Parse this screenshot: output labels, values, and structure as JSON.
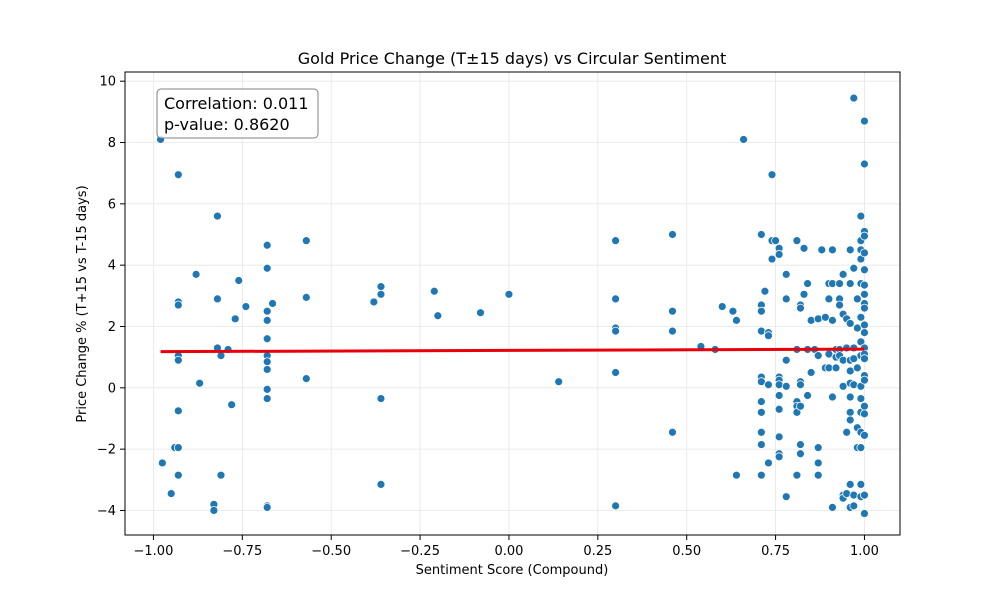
{
  "chart_data": {
    "type": "scatter",
    "title": "Gold Price Change (T±15 days) vs Circular Sentiment",
    "xlabel": "Sentiment Score (Compound)",
    "ylabel": "Price Change % (T+15 vs T-15 days)",
    "xlim": [
      -1.08,
      1.1
    ],
    "ylim": [
      -4.8,
      10.3
    ],
    "xticks": [
      -1.0,
      -0.75,
      -0.5,
      -0.25,
      0.0,
      0.25,
      0.5,
      0.75,
      1.0
    ],
    "xtick_labels": [
      "−1.00",
      "−0.75",
      "−0.50",
      "−0.25",
      "0.00",
      "0.25",
      "0.50",
      "0.75",
      "1.00"
    ],
    "yticks": [
      -4,
      -2,
      0,
      2,
      4,
      6,
      8,
      10
    ],
    "ytick_labels": [
      "−4",
      "−2",
      "0",
      "2",
      "4",
      "6",
      "8",
      "10"
    ],
    "grid": true,
    "point_color": "#1f77b4",
    "trend_color": "#e8000b",
    "annotation": {
      "line1": "Correlation: 0.011",
      "line2": "p-value: 0.8620"
    },
    "trendline": {
      "x": [
        -0.98,
        1.0
      ],
      "y": [
        1.18,
        1.26
      ]
    },
    "points": [
      [
        -0.98,
        8.1
      ],
      [
        -0.975,
        -2.45
      ],
      [
        -0.95,
        -3.45
      ],
      [
        -0.94,
        -1.95
      ],
      [
        -0.93,
        -1.95
      ],
      [
        -0.93,
        6.95
      ],
      [
        -0.93,
        2.8
      ],
      [
        -0.93,
        2.7
      ],
      [
        -0.93,
        1.05
      ],
      [
        -0.93,
        0.9
      ],
      [
        -0.93,
        -0.75
      ],
      [
        -0.93,
        -2.85
      ],
      [
        -0.88,
        3.7
      ],
      [
        -0.87,
        0.15
      ],
      [
        -0.83,
        -3.8
      ],
      [
        -0.83,
        -4.0
      ],
      [
        -0.82,
        5.6
      ],
      [
        -0.82,
        2.9
      ],
      [
        -0.82,
        1.3
      ],
      [
        -0.81,
        1.05
      ],
      [
        -0.81,
        -2.85
      ],
      [
        -0.79,
        1.25
      ],
      [
        -0.78,
        -0.55
      ],
      [
        -0.77,
        2.25
      ],
      [
        -0.76,
        3.5
      ],
      [
        -0.74,
        2.65
      ],
      [
        -0.68,
        4.65
      ],
      [
        -0.68,
        3.9
      ],
      [
        -0.68,
        2.5
      ],
      [
        -0.68,
        2.2
      ],
      [
        -0.68,
        1.6
      ],
      [
        -0.68,
        1.05
      ],
      [
        -0.68,
        0.85
      ],
      [
        -0.68,
        0.6
      ],
      [
        -0.68,
        -0.05
      ],
      [
        -0.68,
        -0.35
      ],
      [
        -0.68,
        -3.85
      ],
      [
        -0.68,
        -3.9
      ],
      [
        -0.665,
        2.75
      ],
      [
        -0.57,
        4.8
      ],
      [
        -0.57,
        2.95
      ],
      [
        -0.57,
        0.3
      ],
      [
        -0.38,
        2.8
      ],
      [
        -0.36,
        3.3
      ],
      [
        -0.36,
        3.05
      ],
      [
        -0.36,
        -0.35
      ],
      [
        -0.36,
        -3.15
      ],
      [
        -0.21,
        3.15
      ],
      [
        -0.2,
        2.35
      ],
      [
        -0.08,
        2.45
      ],
      [
        0.0,
        3.05
      ],
      [
        0.14,
        0.2
      ],
      [
        0.3,
        4.8
      ],
      [
        0.3,
        2.9
      ],
      [
        0.3,
        1.95
      ],
      [
        0.3,
        1.85
      ],
      [
        0.3,
        0.5
      ],
      [
        0.3,
        -3.85
      ],
      [
        0.46,
        5.0
      ],
      [
        0.46,
        2.5
      ],
      [
        0.46,
        1.85
      ],
      [
        0.46,
        -1.45
      ],
      [
        0.54,
        1.35
      ],
      [
        0.58,
        1.25
      ],
      [
        0.6,
        2.65
      ],
      [
        0.63,
        2.5
      ],
      [
        0.64,
        2.2
      ],
      [
        0.64,
        -2.85
      ],
      [
        0.66,
        8.1
      ],
      [
        0.71,
        5.0
      ],
      [
        0.71,
        2.7
      ],
      [
        0.71,
        2.5
      ],
      [
        0.71,
        1.85
      ],
      [
        0.71,
        0.35
      ],
      [
        0.71,
        0.2
      ],
      [
        0.71,
        -0.45
      ],
      [
        0.71,
        -0.8
      ],
      [
        0.71,
        -1.45
      ],
      [
        0.71,
        -1.85
      ],
      [
        0.71,
        -2.85
      ],
      [
        0.72,
        3.15
      ],
      [
        0.73,
        1.8
      ],
      [
        0.73,
        1.7
      ],
      [
        0.73,
        0.1
      ],
      [
        0.73,
        -2.45
      ],
      [
        0.74,
        6.95
      ],
      [
        0.74,
        4.8
      ],
      [
        0.74,
        4.2
      ],
      [
        0.75,
        4.8
      ],
      [
        0.76,
        4.55
      ],
      [
        0.76,
        4.35
      ],
      [
        0.76,
        0.35
      ],
      [
        0.76,
        0.25
      ],
      [
        0.76,
        0.1
      ],
      [
        0.76,
        -0.25
      ],
      [
        0.76,
        -0.7
      ],
      [
        0.76,
        -1.6
      ],
      [
        0.76,
        -2.15
      ],
      [
        0.76,
        -2.25
      ],
      [
        0.78,
        3.7
      ],
      [
        0.78,
        2.9
      ],
      [
        0.78,
        0.9
      ],
      [
        0.78,
        0.05
      ],
      [
        0.78,
        -3.55
      ],
      [
        0.81,
        4.8
      ],
      [
        0.81,
        1.25
      ],
      [
        0.81,
        -0.45
      ],
      [
        0.81,
        -0.6
      ],
      [
        0.81,
        -0.8
      ],
      [
        0.81,
        -2.85
      ],
      [
        0.82,
        2.7
      ],
      [
        0.82,
        2.6
      ],
      [
        0.82,
        0.2
      ],
      [
        0.82,
        0.1
      ],
      [
        0.82,
        -0.6
      ],
      [
        0.82,
        -1.85
      ],
      [
        0.82,
        -2.15
      ],
      [
        0.83,
        4.55
      ],
      [
        0.83,
        3.05
      ],
      [
        0.84,
        3.4
      ],
      [
        0.84,
        1.25
      ],
      [
        0.84,
        -0.25
      ],
      [
        0.85,
        2.2
      ],
      [
        0.85,
        0.5
      ],
      [
        0.86,
        1.25
      ],
      [
        0.87,
        2.25
      ],
      [
        0.87,
        1.05
      ],
      [
        0.87,
        -1.95
      ],
      [
        0.87,
        -2.45
      ],
      [
        0.87,
        -2.85
      ],
      [
        0.88,
        4.5
      ],
      [
        0.89,
        2.3
      ],
      [
        0.89,
        0.65
      ],
      [
        0.9,
        3.4
      ],
      [
        0.9,
        2.9
      ],
      [
        0.9,
        1.1
      ],
      [
        0.9,
        0.65
      ],
      [
        0.91,
        4.5
      ],
      [
        0.91,
        3.4
      ],
      [
        0.91,
        2.2
      ],
      [
        0.91,
        -0.3
      ],
      [
        0.91,
        -3.9
      ],
      [
        0.92,
        1.25
      ],
      [
        0.92,
        1.0
      ],
      [
        0.92,
        0.65
      ],
      [
        0.93,
        3.4
      ],
      [
        0.93,
        2.9
      ],
      [
        0.93,
        2.7
      ],
      [
        0.93,
        1.25
      ],
      [
        0.93,
        1.05
      ],
      [
        0.94,
        3.7
      ],
      [
        0.94,
        2.4
      ],
      [
        0.94,
        0.9
      ],
      [
        0.94,
        0.05
      ],
      [
        0.94,
        -3.5
      ],
      [
        0.94,
        -3.6
      ],
      [
        0.95,
        2.25
      ],
      [
        0.95,
        1.3
      ],
      [
        0.95,
        -1.45
      ],
      [
        0.95,
        -3.45
      ],
      [
        0.96,
        4.5
      ],
      [
        0.96,
        3.4
      ],
      [
        0.96,
        2.1
      ],
      [
        0.96,
        0.9
      ],
      [
        0.96,
        0.55
      ],
      [
        0.96,
        0.15
      ],
      [
        0.96,
        -0.3
      ],
      [
        0.96,
        -0.8
      ],
      [
        0.96,
        -1.05
      ],
      [
        0.96,
        -3.15
      ],
      [
        0.96,
        -3.9
      ],
      [
        0.97,
        9.45
      ],
      [
        0.97,
        3.9
      ],
      [
        0.97,
        1.3
      ],
      [
        0.97,
        0.95
      ],
      [
        0.97,
        0.1
      ],
      [
        0.97,
        -3.5
      ],
      [
        0.97,
        -3.85
      ],
      [
        0.98,
        2.9
      ],
      [
        0.98,
        1.95
      ],
      [
        0.98,
        0.65
      ],
      [
        0.98,
        -1.3
      ],
      [
        0.98,
        -1.95
      ],
      [
        0.99,
        5.6
      ],
      [
        0.99,
        4.8
      ],
      [
        0.99,
        4.5
      ],
      [
        0.99,
        4.2
      ],
      [
        0.99,
        3.4
      ],
      [
        0.99,
        2.3
      ],
      [
        0.99,
        1.5
      ],
      [
        0.99,
        1.05
      ],
      [
        0.99,
        0.05
      ],
      [
        0.99,
        -0.35
      ],
      [
        0.99,
        -0.8
      ],
      [
        0.99,
        -1.45
      ],
      [
        0.99,
        -1.95
      ],
      [
        0.99,
        -3.15
      ],
      [
        0.99,
        -3.55
      ],
      [
        1.0,
        8.7
      ],
      [
        1.0,
        7.3
      ],
      [
        1.0,
        5.1
      ],
      [
        1.0,
        4.95
      ],
      [
        1.0,
        4.4
      ],
      [
        1.0,
        3.85
      ],
      [
        1.0,
        3.35
      ],
      [
        1.0,
        3.05
      ],
      [
        1.0,
        2.75
      ],
      [
        1.0,
        2.6
      ],
      [
        1.0,
        2.05
      ],
      [
        1.0,
        1.8
      ],
      [
        1.0,
        1.3
      ],
      [
        1.0,
        1.1
      ],
      [
        1.0,
        0.95
      ],
      [
        1.0,
        0.4
      ],
      [
        1.0,
        0.25
      ],
      [
        1.0,
        -0.6
      ],
      [
        1.0,
        -0.85
      ],
      [
        1.0,
        -1.55
      ],
      [
        1.0,
        -3.5
      ],
      [
        1.0,
        -4.1
      ]
    ]
  }
}
